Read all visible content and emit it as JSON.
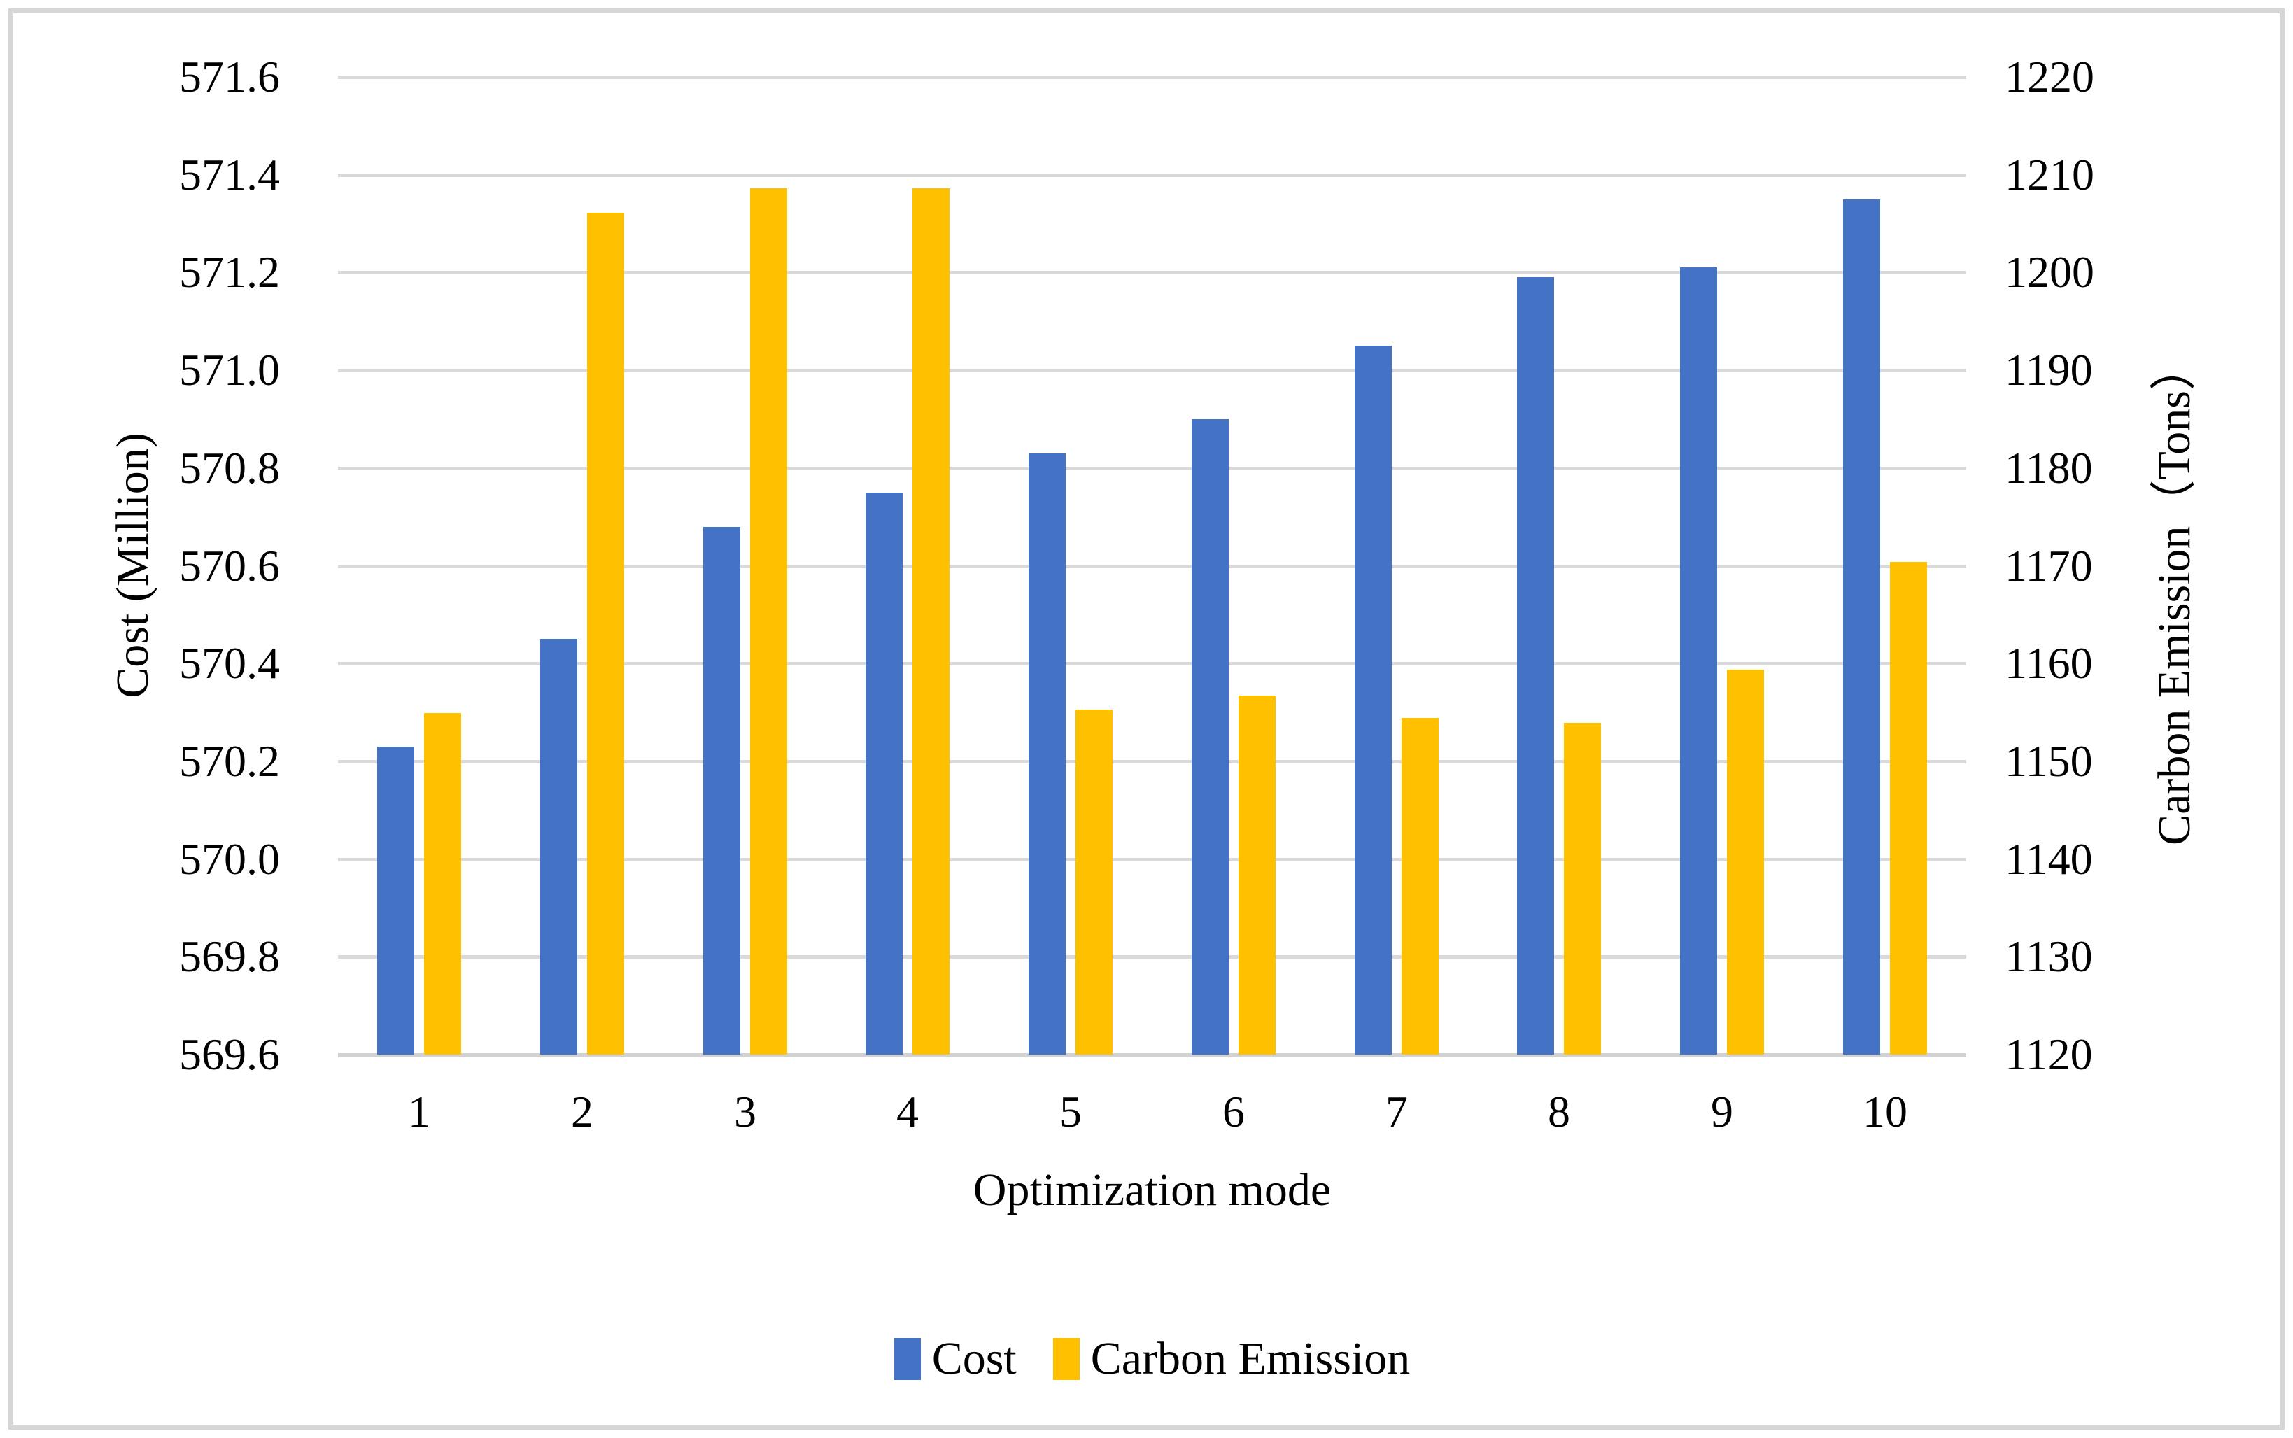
{
  "figure": {
    "background": "#FFFFFF",
    "border_color": "#D6D6D6",
    "gridline_color": "#D9D9D9"
  },
  "chart_data": {
    "type": "bar",
    "title": "",
    "categories": [
      "1",
      "2",
      "3",
      "4",
      "5",
      "6",
      "7",
      "8",
      "9",
      "10"
    ],
    "series": [
      {
        "name": "Cost",
        "axis": "left",
        "color": "#4472C4",
        "values": [
          570.23,
          570.45,
          570.68,
          570.75,
          570.83,
          570.9,
          571.05,
          571.19,
          571.21,
          571.35
        ]
      },
      {
        "name": "Carbon Emission",
        "axis": "right",
        "color": "#FFC000",
        "values": [
          1154.9,
          1206.1,
          1208.6,
          1208.6,
          1155.3,
          1156.7,
          1154.4,
          1153.9,
          1159.4,
          1170.4
        ]
      }
    ],
    "xlabel": "Optimization mode",
    "left_axis": {
      "label": "Cost (Million)",
      "min": 569.6,
      "max": 571.6,
      "step": 0.2,
      "ticks": [
        "571.6",
        "571.4",
        "571.2",
        "571.0",
        "570.8",
        "570.6",
        "570.4",
        "570.2",
        "570.0",
        "569.8",
        "569.6"
      ]
    },
    "right_axis": {
      "label": "Carbon Emission（Tons）",
      "min": 1120,
      "max": 1220,
      "step": 10,
      "ticks": [
        "1220",
        "1210",
        "1200",
        "1190",
        "1180",
        "1170",
        "1160",
        "1150",
        "1140",
        "1130",
        "1120"
      ]
    },
    "grid": true,
    "legend": {
      "position": "bottom",
      "items": [
        "Cost",
        "Carbon Emission"
      ]
    }
  }
}
